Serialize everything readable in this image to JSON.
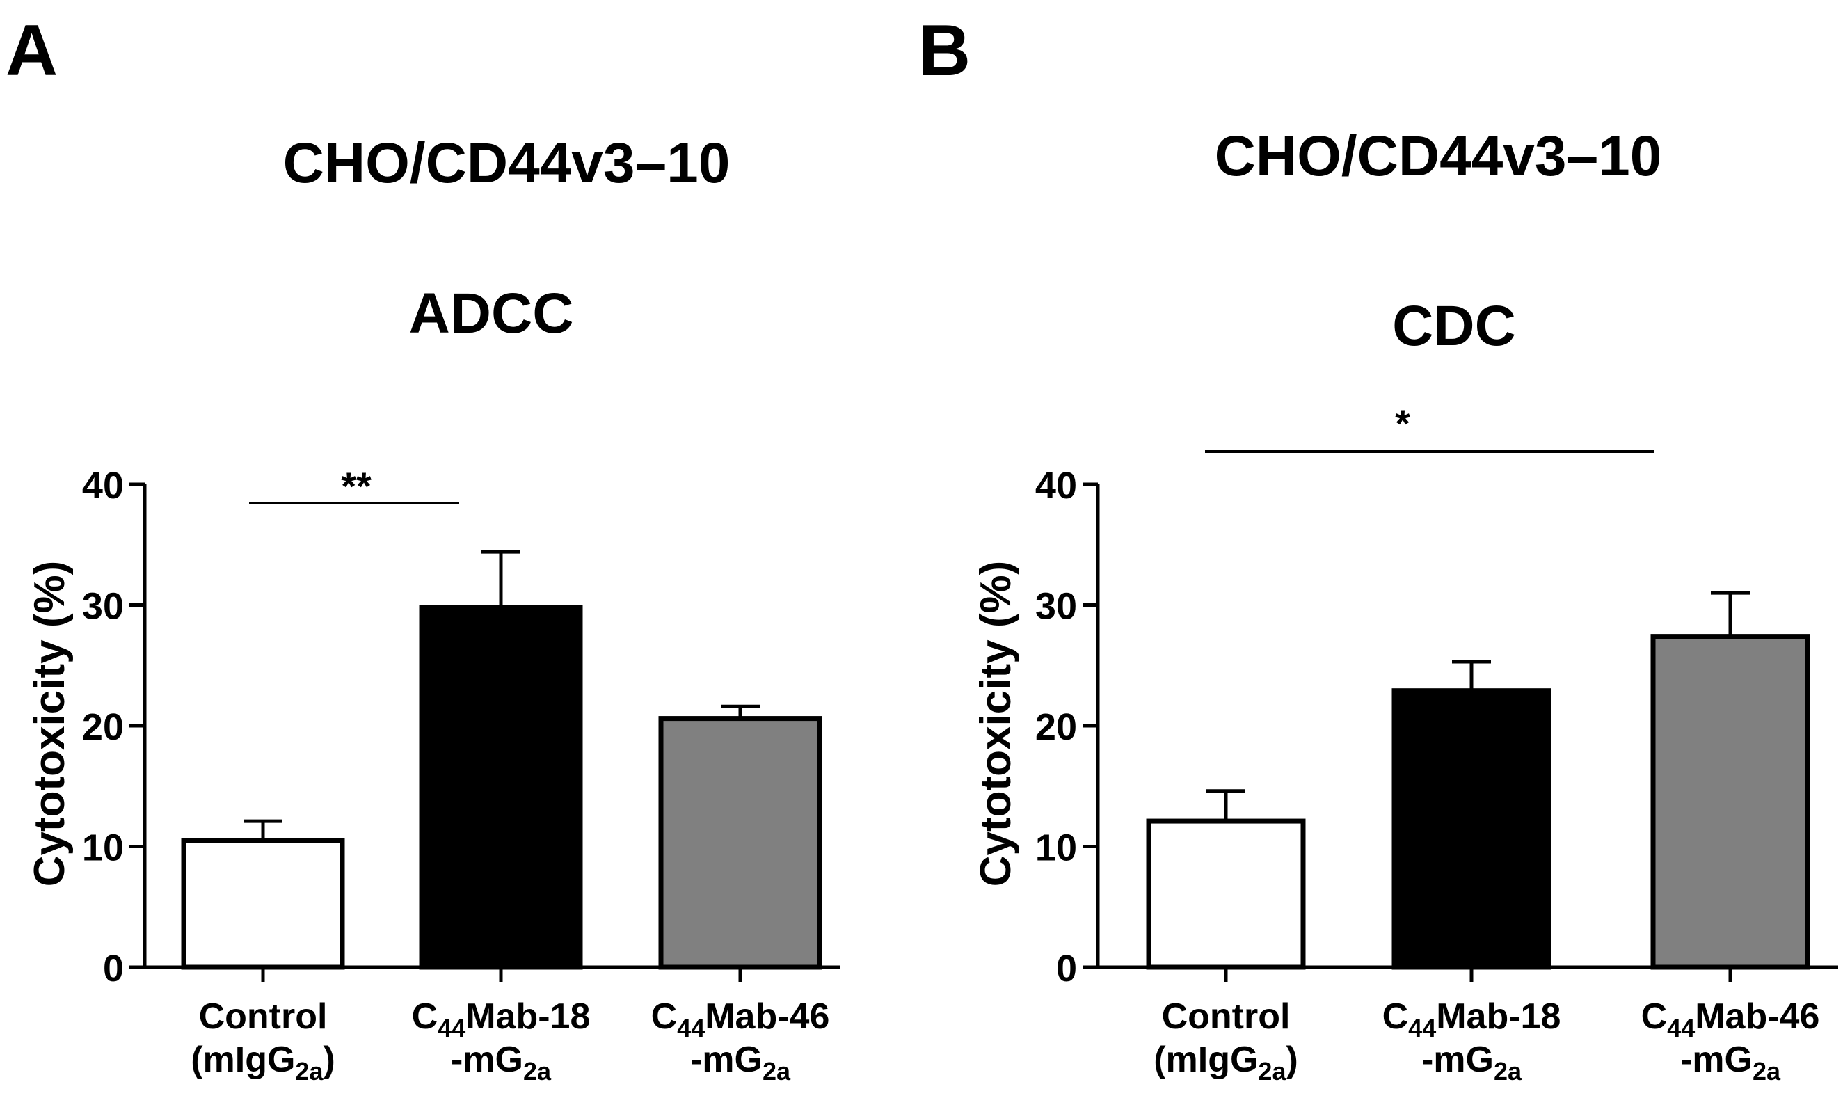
{
  "panels": [
    {
      "letter": "A",
      "title": "CHO/CD44v3–10",
      "subtitle": "ADCC",
      "ylabel": "Cytotoxicity (%)",
      "significance": "**"
    },
    {
      "letter": "B",
      "title": "CHO/CD44v3–10",
      "subtitle": "CDC",
      "ylabel": "Cytotoxicity (%)",
      "significance": "*"
    }
  ],
  "categories": [
    {
      "main": "Control",
      "sub": "(mIgG",
      "sub_script": "2a",
      "sub_end": ")"
    },
    {
      "main_prefix": "C",
      "main_script": "44",
      "main": "Mab-18",
      "sub": "-mG",
      "sub_script": "2a",
      "sub_end": ""
    },
    {
      "main_prefix": "C",
      "main_script": "44",
      "main": "Mab-46",
      "sub": "-mG",
      "sub_script": "2a",
      "sub_end": ""
    }
  ],
  "colors": {
    "control": "#ffffff",
    "mab18": "#000000",
    "mab46": "#808080"
  },
  "chart_data": [
    {
      "type": "bar",
      "title": "CHO/CD44v3–10",
      "subtitle": "ADCC",
      "categories": [
        "Control (mIgG2a)",
        "C44Mab-18-mG2a",
        "C44Mab-46-mG2a"
      ],
      "values": [
        10.5,
        29.8,
        20.6
      ],
      "errors": [
        1.6,
        4.6,
        1.0
      ],
      "ylabel": "Cytotoxicity (%)",
      "ylim": [
        0,
        40
      ],
      "yticks": [
        0,
        10,
        20,
        30,
        40
      ],
      "significance": [
        {
          "from": 0,
          "to": 1,
          "label": "**"
        }
      ]
    },
    {
      "type": "bar",
      "title": "CHO/CD44v3–10",
      "subtitle": "CDC",
      "categories": [
        "Control (mIgG2a)",
        "C44Mab-18-mG2a",
        "C44Mab-46-mG2a"
      ],
      "values": [
        12.1,
        22.9,
        27.4
      ],
      "errors": [
        2.5,
        2.4,
        3.6
      ],
      "ylabel": "Cytotoxicity (%)",
      "ylim": [
        0,
        40
      ],
      "yticks": [
        0,
        10,
        20,
        30,
        40
      ],
      "significance": [
        {
          "from": 0,
          "to": 2,
          "label": "*"
        }
      ]
    }
  ]
}
